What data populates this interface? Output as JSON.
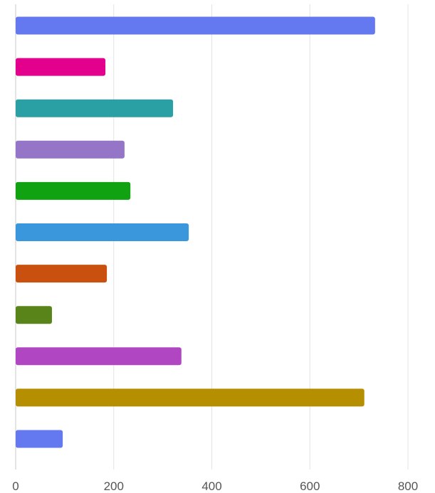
{
  "chart_data": {
    "type": "bar",
    "orientation": "horizontal",
    "title": "",
    "xlabel": "",
    "ylabel": "",
    "xlim": [
      0,
      800
    ],
    "x_ticks": [
      0,
      200,
      400,
      600,
      800
    ],
    "x_tick_labels": [
      "0",
      "200",
      "400",
      "600",
      "800"
    ],
    "grid": "vertical",
    "legend": "none",
    "values": [
      733,
      183,
      321,
      222,
      234,
      353,
      186,
      74,
      338,
      711,
      96
    ],
    "colors": [
      "#6479f0",
      "#e3008c",
      "#2aa0a4",
      "#9475c7",
      "#11a211",
      "#3b97db",
      "#ca5010",
      "#588419",
      "#b146c2",
      "#b58f00",
      "#6479f0"
    ]
  }
}
